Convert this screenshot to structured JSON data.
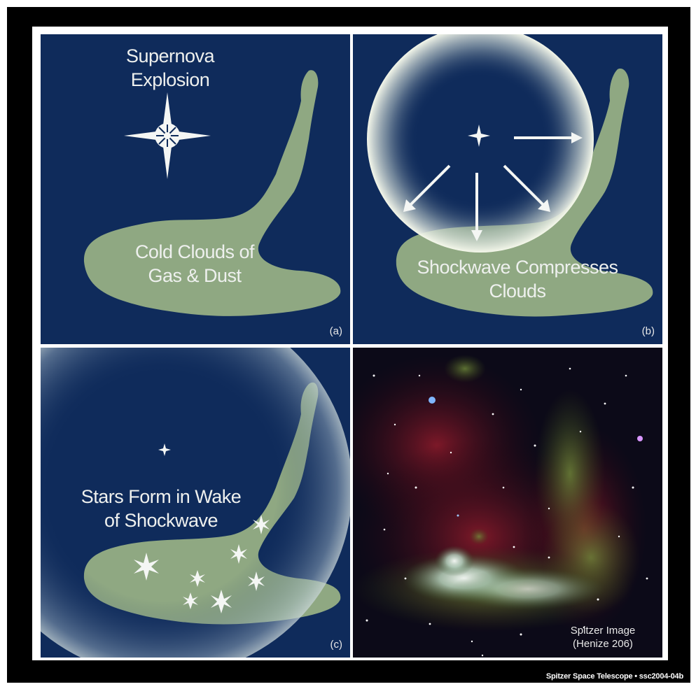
{
  "panels": {
    "a": {
      "title": "Supernova\nExplosion",
      "clouds": "Cold Clouds of\nGas & Dust",
      "tag": "(a)"
    },
    "b": {
      "clouds": "Shockwave Compresses\nClouds",
      "tag": "(b)"
    },
    "c": {
      "caption": "Stars Form in Wake\nof Shockwave",
      "tag": "(c)"
    },
    "d": {
      "caption": "Spitzer Image\n(Henize 206)"
    }
  },
  "credit": "Spitzer Space Telescope • ssc2004-04b",
  "colors": {
    "space": "#0f2b5b",
    "cloud": "#8fa882",
    "border": "#ffffff",
    "frame": "#000000"
  }
}
